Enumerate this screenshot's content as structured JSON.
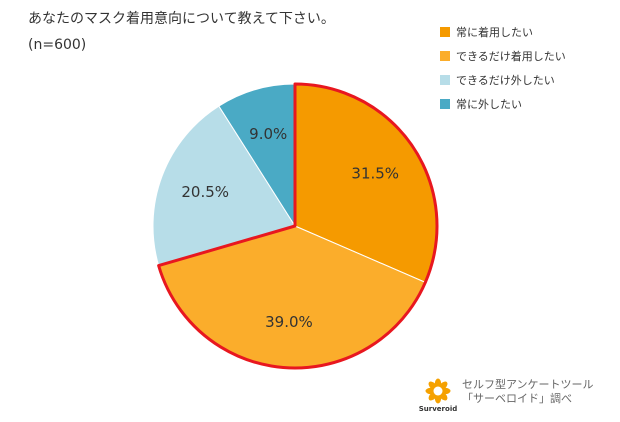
{
  "title": "あなたのマスク着用意向について教えて下さい。",
  "sample": "(n=600)",
  "chart_data": {
    "type": "pie",
    "title": "あなたのマスク着用意向について教えて下さい。",
    "slices": [
      {
        "label": "常に着用したい",
        "value": 31.5,
        "display": "31.5%",
        "color": "#f59a00",
        "highlight": true
      },
      {
        "label": "できるだけ着用したい",
        "value": 39.0,
        "display": "39.0%",
        "color": "#fbad2b",
        "highlight": true
      },
      {
        "label": "できるだけ外したい",
        "value": 20.5,
        "display": "20.5%",
        "color": "#b7dde8",
        "highlight": false
      },
      {
        "label": "常に外したい",
        "value": 9.0,
        "display": "9.0%",
        "color": "#4aaac5",
        "highlight": false
      }
    ],
    "start": "12 o'clock",
    "direction": "clockwise",
    "highlight_outline_color": "#e8171f"
  },
  "legend": [
    {
      "label": "常に着用したい",
      "color": "#f59a00"
    },
    {
      "label": "できるだけ着用したい",
      "color": "#fbad2b"
    },
    {
      "label": "できるだけ外したい",
      "color": "#b7dde8"
    },
    {
      "label": "常に外したい",
      "color": "#4aaac5"
    }
  ],
  "credit": {
    "logo_text": "Surveroid",
    "line1": "セルフ型アンケートツール",
    "line2": "「サーベロイド」調べ"
  },
  "colors": {
    "logo": "#f5a100"
  }
}
